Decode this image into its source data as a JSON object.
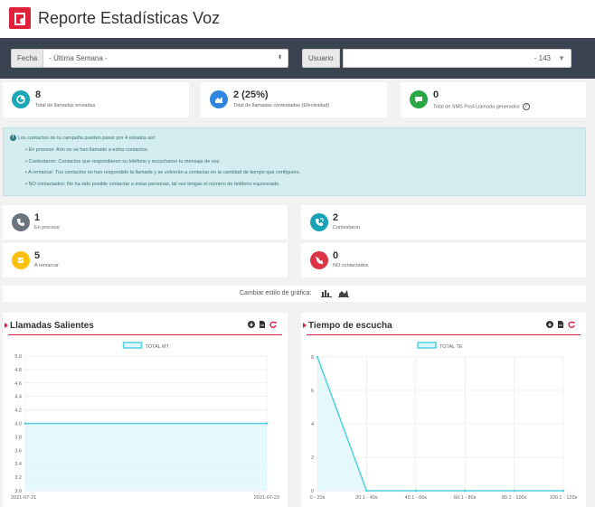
{
  "page": {
    "title": "Reporte Estadísticas Voz"
  },
  "filters": {
    "fecha_label": "Fecha",
    "fecha_value": "- Última Semana -",
    "usuario_label": "Usuario",
    "usuario_value": "- 143"
  },
  "stats": [
    {
      "value": "8",
      "label": "Total de llamadas enviadas",
      "color": "#1ba7b5",
      "icon": "pie-chart-icon"
    },
    {
      "value": "2 (25%)",
      "label": "Total de llamadas contestadas (Efectividad)",
      "color": "#2e86de",
      "icon": "area-chart-icon"
    },
    {
      "value": "0",
      "label": "Total de SMS Post-Llamada generados",
      "color": "#28a745",
      "icon": "sms-icon"
    }
  ],
  "info": {
    "intro": "Los contactos de tu campaña pueden pasar por 4 estados así:",
    "items": [
      "En proceso: Aún no se han llamado a estos contactos.",
      "Contestaron: Contactos que respondieron su teléfono y escucharon tu mensaje de voz.",
      "A remarcar: Tus contactos no han respondido la llamada y se volverán a contactar en la cantidad de tiempo que configures.",
      "NO contactados: No ha sido posible contactar a estas personas, tal vez tengas el número de teléfono equivocado."
    ]
  },
  "states": [
    {
      "value": "1",
      "label": "En proceso",
      "color": "#6c757d",
      "icon": "phone-icon"
    },
    {
      "value": "2",
      "label": "Contestaron",
      "color": "#17a2b8",
      "icon": "phone-incoming-icon"
    },
    {
      "value": "5",
      "label": "A remarcar",
      "color": "#ffc107",
      "icon": "redial-icon"
    },
    {
      "value": "0",
      "label": "NO contactados",
      "color": "#dc3545",
      "icon": "phone-slash-icon"
    }
  ],
  "toggle": {
    "label": "Cambiar estilo de gráfica:"
  },
  "panels": {
    "left": {
      "title": "Llamadas Salientes"
    },
    "right": {
      "title": "Tiempo de escucha"
    }
  },
  "chart_data": [
    {
      "type": "area",
      "title": "Llamadas Salientes",
      "legend": "TOTAL MT",
      "legend_position": "top-center",
      "x": [
        "2021-07-21",
        "2021-07-23"
      ],
      "values": [
        4.0,
        4.0
      ],
      "ylim": [
        3.0,
        5.0
      ],
      "yticks": [
        "3.0",
        "3.2",
        "3.4",
        "3.6",
        "3.8",
        "4.0",
        "4.2",
        "4.4",
        "4.6",
        "4.8",
        "5.0"
      ],
      "grid": true,
      "color": "#4dd0e1"
    },
    {
      "type": "area",
      "title": "Tiempo de escucha",
      "legend": "TOTAL TE",
      "legend_position": "top-center",
      "categories": [
        "0 - 20s",
        "20.1 - 40s",
        "40.1 - 60s",
        "60.1 - 80s",
        "80.1 - 100s",
        "100.1 - 120s"
      ],
      "values": [
        8,
        0,
        0,
        0,
        0,
        0
      ],
      "ylim": [
        0,
        8
      ],
      "yticks": [
        "0",
        "2",
        "4",
        "6",
        "8"
      ],
      "grid": true,
      "color": "#4dd0e1"
    }
  ]
}
